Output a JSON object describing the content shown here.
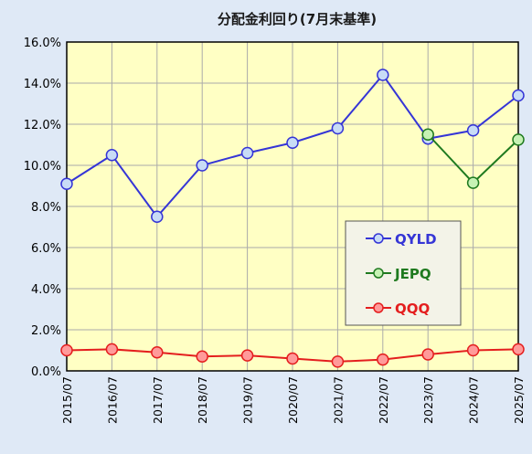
{
  "chart_data": {
    "type": "line",
    "title": "分配金利回り(7月末基準)",
    "xlabel": "",
    "ylabel": "",
    "x": [
      "2015/07",
      "2016/07",
      "2017/07",
      "2018/07",
      "2019/07",
      "2020/07",
      "2021/07",
      "2022/07",
      "2023/07",
      "2024/07",
      "2025/07"
    ],
    "ylim": [
      0,
      16
    ],
    "yticks": [
      "0.0%",
      "2.0%",
      "4.0%",
      "6.0%",
      "8.0%",
      "10.0%",
      "12.0%",
      "14.0%",
      "16.0%"
    ],
    "grid": true,
    "legend_position": "lower-right inside plot",
    "plot_background": "#ffffc4",
    "page_background": "#dfe9f6",
    "series": [
      {
        "name": "QYLD",
        "color": "#3535d6",
        "fill": "#c8dcf6",
        "values": [
          9.1,
          10.5,
          7.5,
          10.0,
          10.6,
          11.1,
          11.8,
          14.4,
          11.3,
          11.7,
          13.4
        ]
      },
      {
        "name": "JEPQ",
        "color": "#1f7a1f",
        "fill": "#c6f2b4",
        "values": [
          null,
          null,
          null,
          null,
          null,
          null,
          null,
          null,
          11.5,
          9.15,
          11.25
        ]
      },
      {
        "name": "QQQ",
        "color": "#e41e1e",
        "fill": "#ff9a9a",
        "values": [
          1.0,
          1.05,
          0.9,
          0.7,
          0.75,
          0.6,
          0.45,
          0.55,
          0.8,
          1.0,
          1.05
        ]
      }
    ]
  }
}
